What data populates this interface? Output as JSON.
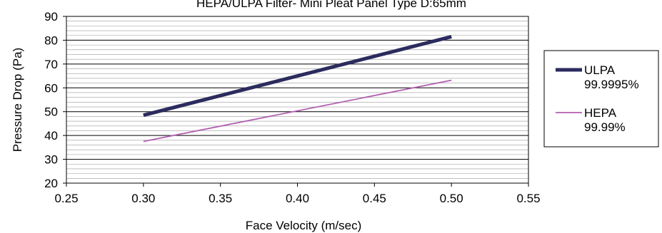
{
  "chart_data": {
    "type": "line",
    "title": "HEPA/ULPA Filter- Mini Pleat Panel Type D:65mm",
    "xlabel": "Face Velocity (m/sec)",
    "ylabel": "Pressure Drop (Pa)",
    "xlim": [
      0.25,
      0.55
    ],
    "ylim": [
      20,
      90
    ],
    "x_ticks": [
      "0.25",
      "0.30",
      "0.35",
      "0.40",
      "0.45",
      "0.50",
      "0.55"
    ],
    "y_ticks": [
      "20",
      "30",
      "40",
      "50",
      "60",
      "70",
      "80",
      "90"
    ],
    "grid": "horizontal minor + major",
    "legend_position": "right",
    "series": [
      {
        "name": "ULPA",
        "name_line2": "99.9995%",
        "color": "#2b2b5e",
        "width": "thick",
        "x": [
          0.3,
          0.5
        ],
        "y": [
          48.5,
          81.5
        ]
      },
      {
        "name": "HEPA",
        "name_line2": "99.99%",
        "color": "#b15fb1",
        "width": "thin",
        "x": [
          0.3,
          0.5
        ],
        "y": [
          37.5,
          63.2
        ]
      }
    ]
  }
}
